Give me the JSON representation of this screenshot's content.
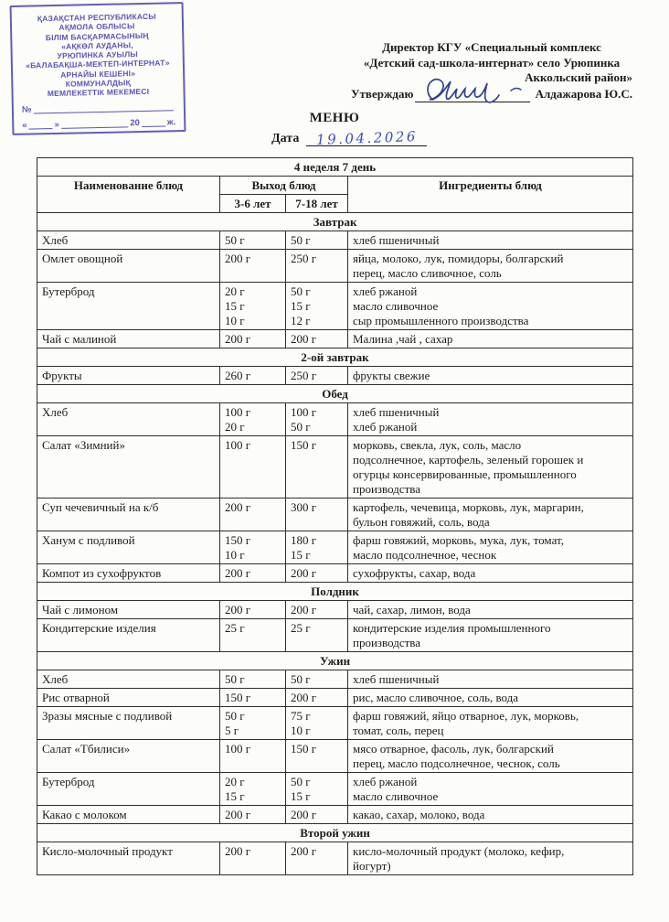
{
  "stamp": {
    "color": "#4c4aae",
    "lines": [
      "ҚАЗАҚСТАН РЕСПУБЛИКАСЫ",
      "АҚМОЛА ОБЛЫСЫ",
      "БІЛІМ БАСҚАРМАСЫНЫҢ",
      "«АҚКӨЛ АУДАНЫ,",
      "УРЮПИНКА АУЫЛЫ",
      "«БАЛАБАҚША-МЕКТЕП-ИНТЕРНАТ»",
      "АРНАЙЫ КЕШЕНІ»",
      "КОММУНАЛДЫҚ",
      "МЕМЛЕКЕТТІК МЕКЕМЕСІ"
    ],
    "no_label": "№",
    "quote_open": "«",
    "quote_close": "»",
    "year_prefix": "20",
    "year_suffix": "ж."
  },
  "approval": {
    "line1": "Директор КГУ «Специальный комплекс",
    "line2": "«Детский сад-школа-интернат» село Урюпинка",
    "line3": "Аккольский район»",
    "approve_label": "Утверждаю",
    "approver": "Алдажарова Ю.С.",
    "signature_color": "#31418f"
  },
  "menu": {
    "title": "МЕНЮ",
    "date_label": "Дата",
    "date_value": "19.04.2026",
    "handwriting_color": "#3b4dc0"
  },
  "table": {
    "week_title": "4 неделя 7 день",
    "columns": {
      "dish": "Наименование блюд",
      "output": "Выход блюд",
      "age_small": "3-6 лет",
      "age_large": "7-18 лет",
      "ingredients": "Ингредиенты блюд"
    },
    "sections": [
      {
        "title": "Завтрак",
        "rows": [
          {
            "name": "Хлеб",
            "g36": "50 г",
            "g718": "50 г",
            "ingredients": "хлеб пшеничный"
          },
          {
            "name": "Омлет овощной",
            "g36": "200 г",
            "g718": "250 г",
            "ingredients": "яйца, молоко, лук, помидоры, болгарский\nперец, масло сливочное, соль"
          },
          {
            "name": "Бутерброд",
            "g36": "20 г\n15 г\n10 г",
            "g718": "50 г\n15 г\n12 г",
            "ingredients": "хлеб ржаной\nмасло сливочное\nсыр промышленного производства"
          },
          {
            "name": "Чай с малиной",
            "g36": "200 г",
            "g718": "200 г",
            "ingredients": "Малина ,чай , сахар"
          }
        ]
      },
      {
        "title": "2-ой завтрак",
        "rows": [
          {
            "name": "Фрукты",
            "g36": "260 г",
            "g718": "250 г",
            "ingredients": "фрукты свежие"
          }
        ]
      },
      {
        "title": "Обед",
        "rows": [
          {
            "name": "Хлеб",
            "g36": "100 г\n20 г",
            "g718": "100 г\n50 г",
            "ingredients": "хлеб пшеничный\nхлеб ржаной"
          },
          {
            "name": "Салат «Зимний»",
            "g36": "100 г",
            "g718": "150 г",
            "ingredients": "морковь, свекла, лук, соль, масло\nподсолнечное, картофель, зеленый горошек и\nогурцы консервированные, промышленного\nпроизводства"
          },
          {
            "name": "Суп чечевичный на к/б",
            "g36": "200 г",
            "g718": "300 г",
            "ingredients": "картофель, чечевица, морковь, лук, маргарин,\nбульон говяжий, соль, вода"
          },
          {
            "name": "Ханум  с подливой",
            "g36": "150 г\n10 г",
            "g718": "180 г\n15 г",
            "ingredients": "фарш говяжий, морковь, мука, лук, томат,\nмасло подсолнечное, чеснок"
          },
          {
            "name": "Компот из сухофруктов",
            "g36": "200 г",
            "g718": "200 г",
            "ingredients": "сухофрукты, сахар, вода"
          }
        ]
      },
      {
        "title": "Полдник",
        "rows": [
          {
            "name": "Чай с лимоном",
            "g36": "200 г",
            "g718": "200 г",
            "ingredients": "чай, сахар, лимон, вода"
          },
          {
            "name": "Кондитерские изделия",
            "g36": "25 г",
            "g718": "25 г",
            "ingredients": "кондитерские изделия промышленного\nпроизводства"
          }
        ]
      },
      {
        "title": "Ужин",
        "rows": [
          {
            "name": "Хлеб",
            "g36": "50 г",
            "g718": "50 г",
            "ingredients": "хлеб пшеничный"
          },
          {
            "name": "Рис отварной",
            "g36": "150 г",
            "g718": "200 г",
            "ingredients": "рис, масло сливочное, соль, вода"
          },
          {
            "name": "Зразы мясные с подливой",
            "g36": "50 г\n5 г",
            "g718": "75 г\n10 г",
            "ingredients": "фарш говяжий, яйцо отварное, лук, морковь,\nтомат, соль, перец"
          },
          {
            "name": "Салат «Тбилиси»",
            "g36": "100 г",
            "g718": "150 г",
            "ingredients": "мясо отварное, фасоль, лук, болгарский\nперец, масло подсолнечное, чеснок, соль"
          },
          {
            "name": "Бутерброд",
            "g36": "20 г\n15 г",
            "g718": "50 г\n15 г",
            "ingredients": "хлеб ржаной\nмасло сливочное"
          },
          {
            "name": "Какао с молоком",
            "g36": "200 г",
            "g718": "200 г",
            "ingredients": "какао, сахар, молоко, вода"
          }
        ]
      },
      {
        "title": "Второй ужин",
        "rows": [
          {
            "name": "Кисло-молочный продукт",
            "g36": "200 г",
            "g718": "200 г",
            "ingredients": "кисло-молочный продукт (молоко, кефир,\nйогурт)"
          }
        ]
      }
    ]
  }
}
